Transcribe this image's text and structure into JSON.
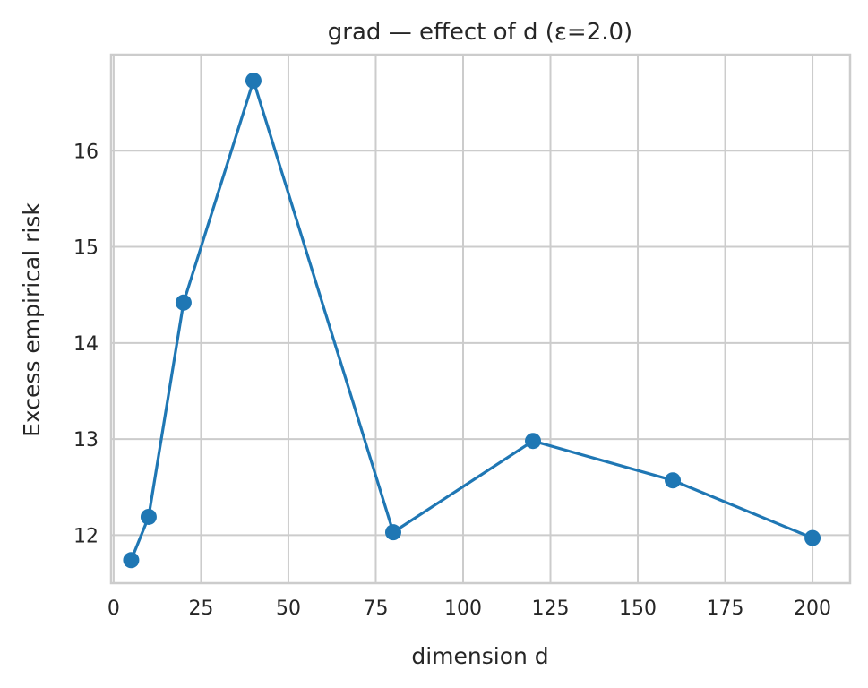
{
  "chart_data": {
    "type": "line",
    "title": "grad — effect of d  (ε=2.0)",
    "xlabel": "dimension d",
    "ylabel": "Excess empirical risk",
    "x": [
      5,
      10,
      20,
      40,
      80,
      120,
      160,
      200
    ],
    "series": [
      {
        "values": [
          11.74,
          12.19,
          14.42,
          16.73,
          12.03,
          12.98,
          12.57,
          11.97
        ],
        "color": "#1f77b4",
        "marker": "circle"
      }
    ],
    "xlim": [
      -0.75,
      210.75
    ],
    "ylim": [
      11.5,
      17.0
    ],
    "xticks": [
      0,
      25,
      50,
      75,
      100,
      125,
      150,
      175,
      200
    ],
    "xtick_labels": [
      "0",
      "25",
      "50",
      "75",
      "100",
      "125",
      "150",
      "175",
      "200"
    ],
    "yticks": [
      12,
      13,
      14,
      15,
      16
    ],
    "ytick_labels": [
      "12",
      "13",
      "14",
      "15",
      "16"
    ],
    "grid": true
  }
}
